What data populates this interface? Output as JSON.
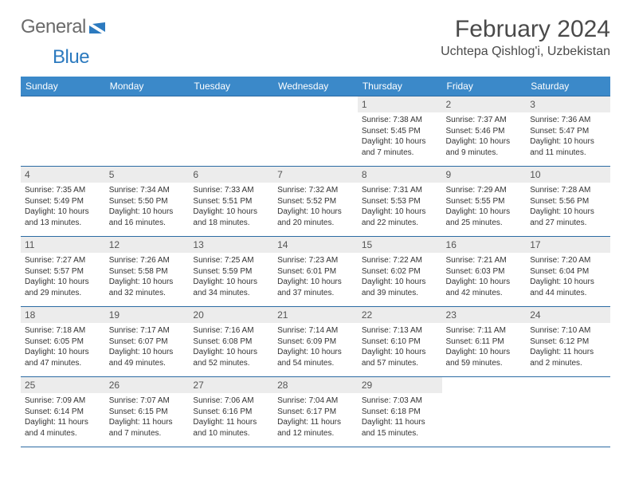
{
  "brand": {
    "text_general": "General",
    "text_blue": "Blue",
    "text_color_general": "#6b6b6b",
    "text_color_blue": "#2c7abf",
    "mark_color": "#2c7abf"
  },
  "header": {
    "month_title": "February 2024",
    "location": "Uchtepa Qishlog'i, Uzbekistan"
  },
  "colors": {
    "header_row_bg": "#3b89c9",
    "header_row_text": "#ffffff",
    "week_border": "#2c6ba3",
    "daynum_bg": "#ececec",
    "daynum_text": "#555555",
    "body_text": "#333333",
    "page_bg": "#ffffff"
  },
  "typography": {
    "month_title_fontsize": 30,
    "location_fontsize": 16,
    "dayheader_fontsize": 12,
    "daynum_fontsize": 12,
    "body_fontsize": 10,
    "font_family": "Arial, Helvetica, sans-serif"
  },
  "calendar": {
    "day_headers": [
      "Sunday",
      "Monday",
      "Tuesday",
      "Wednesday",
      "Thursday",
      "Friday",
      "Saturday"
    ],
    "weeks": [
      [
        {
          "empty": true
        },
        {
          "empty": true
        },
        {
          "empty": true
        },
        {
          "empty": true
        },
        {
          "num": "1",
          "sunrise": "Sunrise: 7:38 AM",
          "sunset": "Sunset: 5:45 PM",
          "daylight": "Daylight: 10 hours and 7 minutes."
        },
        {
          "num": "2",
          "sunrise": "Sunrise: 7:37 AM",
          "sunset": "Sunset: 5:46 PM",
          "daylight": "Daylight: 10 hours and 9 minutes."
        },
        {
          "num": "3",
          "sunrise": "Sunrise: 7:36 AM",
          "sunset": "Sunset: 5:47 PM",
          "daylight": "Daylight: 10 hours and 11 minutes."
        }
      ],
      [
        {
          "num": "4",
          "sunrise": "Sunrise: 7:35 AM",
          "sunset": "Sunset: 5:49 PM",
          "daylight": "Daylight: 10 hours and 13 minutes."
        },
        {
          "num": "5",
          "sunrise": "Sunrise: 7:34 AM",
          "sunset": "Sunset: 5:50 PM",
          "daylight": "Daylight: 10 hours and 16 minutes."
        },
        {
          "num": "6",
          "sunrise": "Sunrise: 7:33 AM",
          "sunset": "Sunset: 5:51 PM",
          "daylight": "Daylight: 10 hours and 18 minutes."
        },
        {
          "num": "7",
          "sunrise": "Sunrise: 7:32 AM",
          "sunset": "Sunset: 5:52 PM",
          "daylight": "Daylight: 10 hours and 20 minutes."
        },
        {
          "num": "8",
          "sunrise": "Sunrise: 7:31 AM",
          "sunset": "Sunset: 5:53 PM",
          "daylight": "Daylight: 10 hours and 22 minutes."
        },
        {
          "num": "9",
          "sunrise": "Sunrise: 7:29 AM",
          "sunset": "Sunset: 5:55 PM",
          "daylight": "Daylight: 10 hours and 25 minutes."
        },
        {
          "num": "10",
          "sunrise": "Sunrise: 7:28 AM",
          "sunset": "Sunset: 5:56 PM",
          "daylight": "Daylight: 10 hours and 27 minutes."
        }
      ],
      [
        {
          "num": "11",
          "sunrise": "Sunrise: 7:27 AM",
          "sunset": "Sunset: 5:57 PM",
          "daylight": "Daylight: 10 hours and 29 minutes."
        },
        {
          "num": "12",
          "sunrise": "Sunrise: 7:26 AM",
          "sunset": "Sunset: 5:58 PM",
          "daylight": "Daylight: 10 hours and 32 minutes."
        },
        {
          "num": "13",
          "sunrise": "Sunrise: 7:25 AM",
          "sunset": "Sunset: 5:59 PM",
          "daylight": "Daylight: 10 hours and 34 minutes."
        },
        {
          "num": "14",
          "sunrise": "Sunrise: 7:23 AM",
          "sunset": "Sunset: 6:01 PM",
          "daylight": "Daylight: 10 hours and 37 minutes."
        },
        {
          "num": "15",
          "sunrise": "Sunrise: 7:22 AM",
          "sunset": "Sunset: 6:02 PM",
          "daylight": "Daylight: 10 hours and 39 minutes."
        },
        {
          "num": "16",
          "sunrise": "Sunrise: 7:21 AM",
          "sunset": "Sunset: 6:03 PM",
          "daylight": "Daylight: 10 hours and 42 minutes."
        },
        {
          "num": "17",
          "sunrise": "Sunrise: 7:20 AM",
          "sunset": "Sunset: 6:04 PM",
          "daylight": "Daylight: 10 hours and 44 minutes."
        }
      ],
      [
        {
          "num": "18",
          "sunrise": "Sunrise: 7:18 AM",
          "sunset": "Sunset: 6:05 PM",
          "daylight": "Daylight: 10 hours and 47 minutes."
        },
        {
          "num": "19",
          "sunrise": "Sunrise: 7:17 AM",
          "sunset": "Sunset: 6:07 PM",
          "daylight": "Daylight: 10 hours and 49 minutes."
        },
        {
          "num": "20",
          "sunrise": "Sunrise: 7:16 AM",
          "sunset": "Sunset: 6:08 PM",
          "daylight": "Daylight: 10 hours and 52 minutes."
        },
        {
          "num": "21",
          "sunrise": "Sunrise: 7:14 AM",
          "sunset": "Sunset: 6:09 PM",
          "daylight": "Daylight: 10 hours and 54 minutes."
        },
        {
          "num": "22",
          "sunrise": "Sunrise: 7:13 AM",
          "sunset": "Sunset: 6:10 PM",
          "daylight": "Daylight: 10 hours and 57 minutes."
        },
        {
          "num": "23",
          "sunrise": "Sunrise: 7:11 AM",
          "sunset": "Sunset: 6:11 PM",
          "daylight": "Daylight: 10 hours and 59 minutes."
        },
        {
          "num": "24",
          "sunrise": "Sunrise: 7:10 AM",
          "sunset": "Sunset: 6:12 PM",
          "daylight": "Daylight: 11 hours and 2 minutes."
        }
      ],
      [
        {
          "num": "25",
          "sunrise": "Sunrise: 7:09 AM",
          "sunset": "Sunset: 6:14 PM",
          "daylight": "Daylight: 11 hours and 4 minutes."
        },
        {
          "num": "26",
          "sunrise": "Sunrise: 7:07 AM",
          "sunset": "Sunset: 6:15 PM",
          "daylight": "Daylight: 11 hours and 7 minutes."
        },
        {
          "num": "27",
          "sunrise": "Sunrise: 7:06 AM",
          "sunset": "Sunset: 6:16 PM",
          "daylight": "Daylight: 11 hours and 10 minutes."
        },
        {
          "num": "28",
          "sunrise": "Sunrise: 7:04 AM",
          "sunset": "Sunset: 6:17 PM",
          "daylight": "Daylight: 11 hours and 12 minutes."
        },
        {
          "num": "29",
          "sunrise": "Sunrise: 7:03 AM",
          "sunset": "Sunset: 6:18 PM",
          "daylight": "Daylight: 11 hours and 15 minutes."
        },
        {
          "empty": true
        },
        {
          "empty": true
        }
      ]
    ]
  }
}
